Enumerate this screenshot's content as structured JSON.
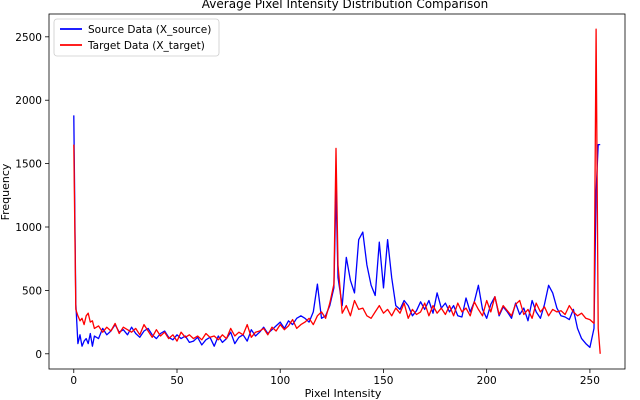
{
  "chart_data": {
    "type": "line",
    "title": "Average Pixel Intensity Distribution Comparison",
    "xlabel": "Pixel Intensity",
    "ylabel": "Frequency",
    "xlim": [
      -12,
      267
    ],
    "ylim": [
      -120,
      2680
    ],
    "xticks": [
      0,
      50,
      100,
      150,
      200,
      250
    ],
    "yticks": [
      0,
      500,
      1000,
      1500,
      2000,
      2500
    ],
    "grid": false,
    "legend_position": "top-left",
    "series": [
      {
        "name": "Source Data (X_source)",
        "color": "#0000ff",
        "x": [
          0,
          1,
          2,
          3,
          4,
          5,
          6,
          7,
          8,
          9,
          10,
          12,
          14,
          16,
          18,
          20,
          22,
          24,
          26,
          28,
          30,
          32,
          34,
          36,
          38,
          40,
          42,
          44,
          46,
          48,
          50,
          52,
          54,
          56,
          58,
          60,
          62,
          64,
          66,
          68,
          70,
          72,
          74,
          76,
          78,
          80,
          82,
          84,
          86,
          88,
          90,
          92,
          94,
          96,
          98,
          100,
          102,
          104,
          106,
          108,
          110,
          112,
          114,
          116,
          118,
          120,
          122,
          124,
          126,
          127,
          128,
          130,
          132,
          134,
          136,
          138,
          140,
          142,
          144,
          146,
          148,
          150,
          152,
          154,
          156,
          158,
          160,
          162,
          164,
          166,
          168,
          170,
          172,
          174,
          176,
          178,
          180,
          182,
          184,
          186,
          188,
          190,
          192,
          194,
          196,
          198,
          200,
          202,
          204,
          206,
          208,
          210,
          212,
          214,
          216,
          218,
          220,
          222,
          224,
          226,
          228,
          230,
          232,
          234,
          236,
          238,
          240,
          242,
          244,
          246,
          248,
          250,
          252,
          253,
          254,
          255
        ],
        "y": [
          1880,
          400,
          80,
          150,
          60,
          100,
          120,
          80,
          160,
          60,
          140,
          120,
          200,
          150,
          180,
          230,
          170,
          190,
          150,
          210,
          160,
          130,
          180,
          200,
          150,
          120,
          160,
          180,
          130,
          110,
          150,
          120,
          140,
          90,
          100,
          130,
          70,
          110,
          130,
          60,
          140,
          90,
          120,
          170,
          80,
          130,
          150,
          100,
          190,
          140,
          170,
          210,
          160,
          190,
          220,
          250,
          200,
          260,
          230,
          280,
          300,
          280,
          250,
          330,
          550,
          280,
          300,
          380,
          520,
          1300,
          600,
          380,
          760,
          580,
          480,
          900,
          960,
          700,
          540,
          460,
          880,
          520,
          900,
          600,
          380,
          350,
          420,
          380,
          300,
          340,
          410,
          350,
          420,
          320,
          480,
          360,
          400,
          330,
          380,
          300,
          290,
          440,
          330,
          410,
          540,
          350,
          280,
          390,
          450,
          300,
          370,
          330,
          280,
          400,
          310,
          360,
          260,
          420,
          330,
          280,
          390,
          540,
          480,
          360,
          300,
          290,
          270,
          350,
          200,
          120,
          80,
          50,
          200,
          1280,
          1650,
          1650
        ]
      },
      {
        "name": "Target Data (X_target)",
        "color": "#ff0000",
        "x": [
          0,
          1,
          2,
          3,
          4,
          5,
          6,
          7,
          8,
          9,
          10,
          12,
          14,
          16,
          18,
          20,
          22,
          24,
          26,
          28,
          30,
          32,
          34,
          36,
          38,
          40,
          42,
          44,
          46,
          48,
          50,
          52,
          54,
          56,
          58,
          60,
          62,
          64,
          66,
          68,
          70,
          72,
          74,
          76,
          78,
          80,
          82,
          84,
          86,
          88,
          90,
          92,
          94,
          96,
          98,
          100,
          102,
          104,
          106,
          108,
          110,
          112,
          114,
          116,
          118,
          120,
          122,
          124,
          126,
          127,
          128,
          130,
          132,
          134,
          136,
          138,
          140,
          142,
          144,
          146,
          148,
          150,
          152,
          154,
          156,
          158,
          160,
          162,
          164,
          166,
          168,
          170,
          172,
          174,
          176,
          178,
          180,
          182,
          184,
          186,
          188,
          190,
          192,
          194,
          196,
          198,
          200,
          202,
          204,
          206,
          208,
          210,
          212,
          214,
          216,
          218,
          220,
          222,
          224,
          226,
          228,
          230,
          232,
          234,
          236,
          238,
          240,
          242,
          244,
          246,
          248,
          250,
          252,
          253,
          254,
          255
        ],
        "y": [
          1650,
          350,
          300,
          260,
          280,
          230,
          300,
          320,
          250,
          260,
          200,
          220,
          170,
          210,
          180,
          240,
          160,
          210,
          190,
          170,
          200,
          150,
          230,
          180,
          130,
          190,
          140,
          170,
          120,
          150,
          100,
          170,
          130,
          150,
          120,
          140,
          110,
          160,
          130,
          140,
          110,
          150,
          120,
          200,
          140,
          170,
          150,
          230,
          130,
          170,
          180,
          200,
          150,
          210,
          180,
          230,
          190,
          220,
          270,
          200,
          230,
          250,
          280,
          230,
          300,
          330,
          280,
          400,
          550,
          1620,
          700,
          320,
          380,
          300,
          420,
          350,
          360,
          300,
          280,
          330,
          380,
          320,
          350,
          300,
          360,
          320,
          400,
          280,
          350,
          310,
          330,
          400,
          300,
          380,
          320,
          360,
          310,
          380,
          300,
          400,
          330,
          360,
          300,
          410,
          350,
          300,
          420,
          330,
          450,
          310,
          380,
          340,
          300,
          390,
          420,
          310,
          350,
          280,
          400,
          330,
          370,
          300,
          350,
          330,
          340,
          310,
          380,
          330,
          300,
          320,
          280,
          270,
          240,
          2560,
          200,
          0
        ]
      }
    ]
  }
}
